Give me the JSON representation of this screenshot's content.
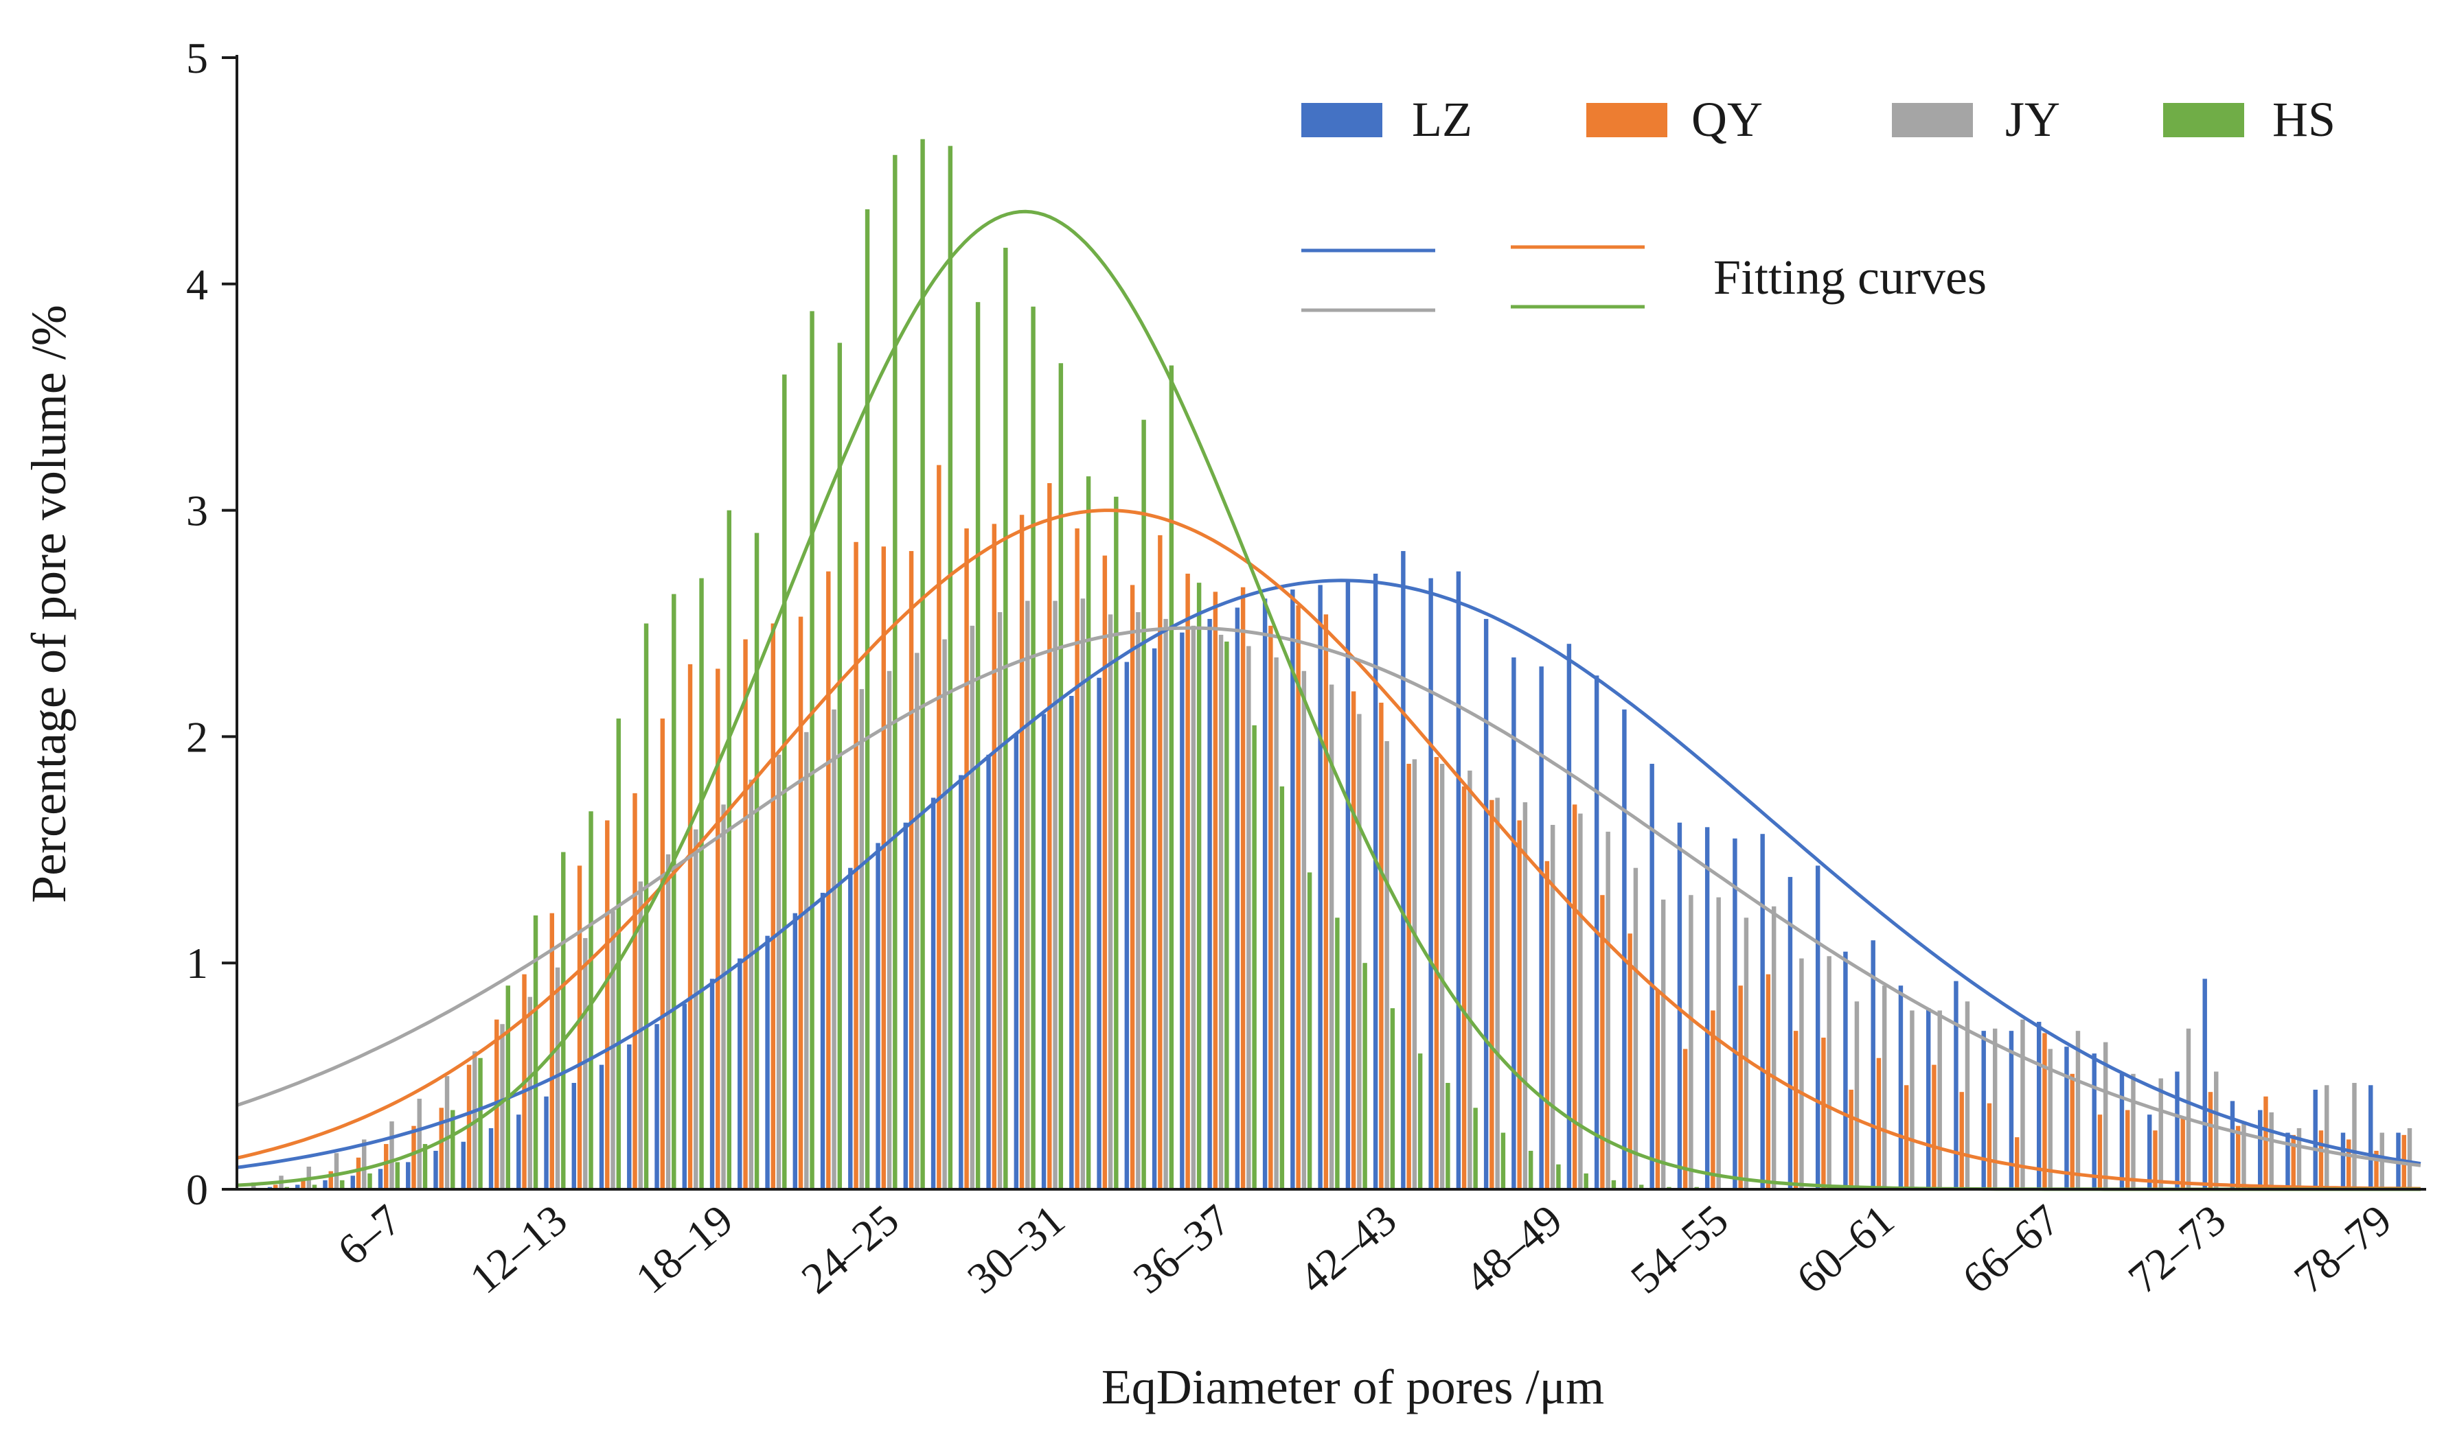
{
  "chart_data": {
    "type": "bar",
    "title": "",
    "xlabel": "EqDiameter of pores /μm",
    "ylabel": "Percentage of pore volume /%",
    "ylim": [
      0,
      5
    ],
    "yticks": [
      "0",
      "1",
      "2",
      "3",
      "4",
      "5"
    ],
    "x_tick_labels": [
      "6–7",
      "12–13",
      "18–19",
      "24–25",
      "30–31",
      "36–37",
      "42–43",
      "48–49",
      "54–55",
      "60–61",
      "66–67",
      "72–73",
      "78–79"
    ],
    "bin_range": {
      "first_bin_start": 1,
      "last_bin_start": 79
    },
    "series": [
      {
        "name": "LZ",
        "color": "#4472C4",
        "values": [
          0.0,
          0.01,
          0.02,
          0.04,
          0.06,
          0.09,
          0.12,
          0.17,
          0.21,
          0.27,
          0.33,
          0.41,
          0.47,
          0.55,
          0.64,
          0.73,
          0.82,
          0.93,
          1.02,
          1.12,
          1.22,
          1.31,
          1.42,
          1.53,
          1.62,
          1.73,
          1.83,
          1.92,
          2.01,
          2.1,
          2.18,
          2.26,
          2.33,
          2.39,
          2.46,
          2.52,
          2.57,
          2.61,
          2.65,
          2.67,
          2.69,
          2.72,
          2.82,
          2.7,
          2.73,
          2.52,
          2.35,
          2.31,
          2.41,
          2.27,
          2.12,
          1.88,
          1.62,
          1.6,
          1.55,
          1.57,
          1.38,
          1.43,
          1.05,
          1.1,
          0.9,
          0.8,
          0.92,
          0.7,
          0.7,
          0.74,
          0.63,
          0.6,
          0.51,
          0.33,
          0.52,
          0.93,
          0.39,
          0.35,
          0.25,
          0.44,
          0.25,
          0.46,
          0.25
        ]
      },
      {
        "name": "QY",
        "color": "#ED7D31",
        "values": [
          0.0,
          0.02,
          0.05,
          0.08,
          0.14,
          0.2,
          0.28,
          0.36,
          0.55,
          0.75,
          0.95,
          1.22,
          1.43,
          1.63,
          1.75,
          2.08,
          2.32,
          2.3,
          2.43,
          2.5,
          2.53,
          2.73,
          2.86,
          2.84,
          2.82,
          3.2,
          2.92,
          2.94,
          2.98,
          3.12,
          2.92,
          2.8,
          2.67,
          2.89,
          2.72,
          2.64,
          2.66,
          2.49,
          2.58,
          2.54,
          2.2,
          2.15,
          1.88,
          1.91,
          1.78,
          1.72,
          1.63,
          1.45,
          1.7,
          1.3,
          1.13,
          0.88,
          0.62,
          0.79,
          0.9,
          0.95,
          0.7,
          0.67,
          0.44,
          0.58,
          0.46,
          0.55,
          0.43,
          0.38,
          0.23,
          0.69,
          0.51,
          0.33,
          0.35,
          0.26,
          0.32,
          0.43,
          0.28,
          0.41,
          0.24,
          0.26,
          0.22,
          0.17,
          0.24
        ]
      },
      {
        "name": "JY",
        "color": "#A5A5A5",
        "values": [
          0.03,
          0.06,
          0.1,
          0.16,
          0.22,
          0.3,
          0.4,
          0.5,
          0.61,
          0.73,
          0.85,
          0.98,
          1.11,
          1.23,
          1.36,
          1.48,
          1.59,
          1.7,
          1.81,
          1.92,
          2.02,
          2.12,
          2.21,
          2.29,
          2.37,
          2.43,
          2.49,
          2.55,
          2.6,
          2.6,
          2.61,
          2.54,
          2.55,
          2.52,
          2.49,
          2.45,
          2.4,
          2.35,
          2.29,
          2.23,
          2.1,
          1.98,
          1.9,
          1.88,
          1.85,
          1.73,
          1.71,
          1.61,
          1.66,
          1.58,
          1.42,
          1.28,
          1.3,
          1.29,
          1.2,
          1.25,
          1.02,
          1.03,
          0.83,
          0.9,
          0.79,
          0.79,
          0.83,
          0.71,
          0.75,
          0.62,
          0.7,
          0.65,
          0.51,
          0.49,
          0.71,
          0.52,
          0.3,
          0.34,
          0.27,
          0.46,
          0.47,
          0.25,
          0.27
        ]
      },
      {
        "name": "HS",
        "color": "#70AD47",
        "values": [
          0.0,
          0.01,
          0.02,
          0.04,
          0.07,
          0.12,
          0.2,
          0.35,
          0.58,
          0.9,
          1.21,
          1.49,
          1.67,
          2.08,
          2.5,
          2.63,
          2.7,
          3.0,
          2.9,
          3.6,
          3.88,
          3.74,
          4.33,
          4.57,
          4.64,
          4.61,
          3.92,
          4.16,
          3.9,
          3.65,
          3.15,
          3.06,
          3.4,
          3.64,
          2.68,
          2.42,
          2.05,
          1.78,
          1.4,
          1.2,
          1.0,
          0.8,
          0.6,
          0.47,
          0.36,
          0.25,
          0.17,
          0.11,
          0.07,
          0.04,
          0.02,
          0.01,
          0.01,
          0.0,
          0.0,
          0.0,
          0.0,
          0.0,
          0.0,
          0.0,
          0.0,
          0.0,
          0.0,
          0.0,
          0.0,
          0.0,
          0.0,
          0.0,
          0.0,
          0.0,
          0.0,
          0.0,
          0.0,
          0.0,
          0.0,
          0.0,
          0.0,
          0.0,
          0.0
        ]
      }
    ],
    "fitting_curves": [
      {
        "name": "LZ",
        "color": "#4472C4",
        "peak": 2.69,
        "mean": 40.5,
        "sigma": 15.5
      },
      {
        "name": "QY",
        "color": "#ED7D31",
        "peak": 3.0,
        "mean": 32.0,
        "sigma": 12.7
      },
      {
        "name": "JY",
        "color": "#A5A5A5",
        "peak": 2.48,
        "mean": 35.0,
        "sigma": 17.7
      },
      {
        "name": "HS",
        "color": "#70AD47",
        "peak": 4.32,
        "mean": 29.0,
        "sigma": 8.6
      }
    ],
    "legend": {
      "position": "top-right",
      "entries": [
        "LZ",
        "QY",
        "JY",
        "HS"
      ],
      "fitting_label": "Fitting curves"
    }
  }
}
